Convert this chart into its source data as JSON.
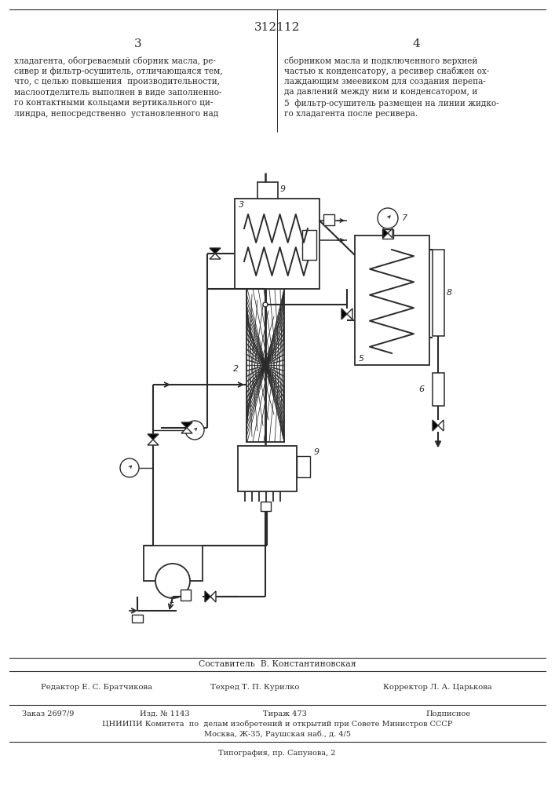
{
  "patent_number": "312112",
  "page_left": "3",
  "page_right": "4",
  "text_left_lines": [
    "хладагента, обогреваемый сборник масла, ре-",
    "сивер и фильтр-осушитель, отличающаяся тем,",
    "что, с целью повышения  производительности,",
    "маслоотделитель выполнен в виде заполненно-",
    "го контактными кольцами вертикального ци-",
    "линдра, непосредственно  установленного над"
  ],
  "text_right_lines": [
    "сборником масла и подключенного верхней",
    "частью к конденсатору, а ресивер снабжен ох-",
    "лаждающим змеевиком для создания перепа-",
    "да давлений между ним и конденсатором, и",
    "5  фильтр-осушитель размещен на линии жидко-",
    "го хладагента после ресивера."
  ],
  "composer": "Составитель  В. Константиновская",
  "editor_line": "Редактор Е. С. Братчикова",
  "techred_line": "Техред Т. П. Курилко",
  "corrector_line": "Корректор Л. А. Царькова",
  "order": "Заказ 2697/9",
  "izd": "Изд. № 1143",
  "tirazh": "Тираж 473",
  "podpisnoe": "Подписное",
  "cniipи": "ЦНИИПИ Комитета  по  делам изобретений и открытий при Совете Министров СССР",
  "address": "Москва, Ж-35, Раушская наб., д. 4/5",
  "tipografia": "Типография, пр. Сапунова, 2",
  "bg_color": "#ffffff",
  "line_color": "#2a2a2a"
}
